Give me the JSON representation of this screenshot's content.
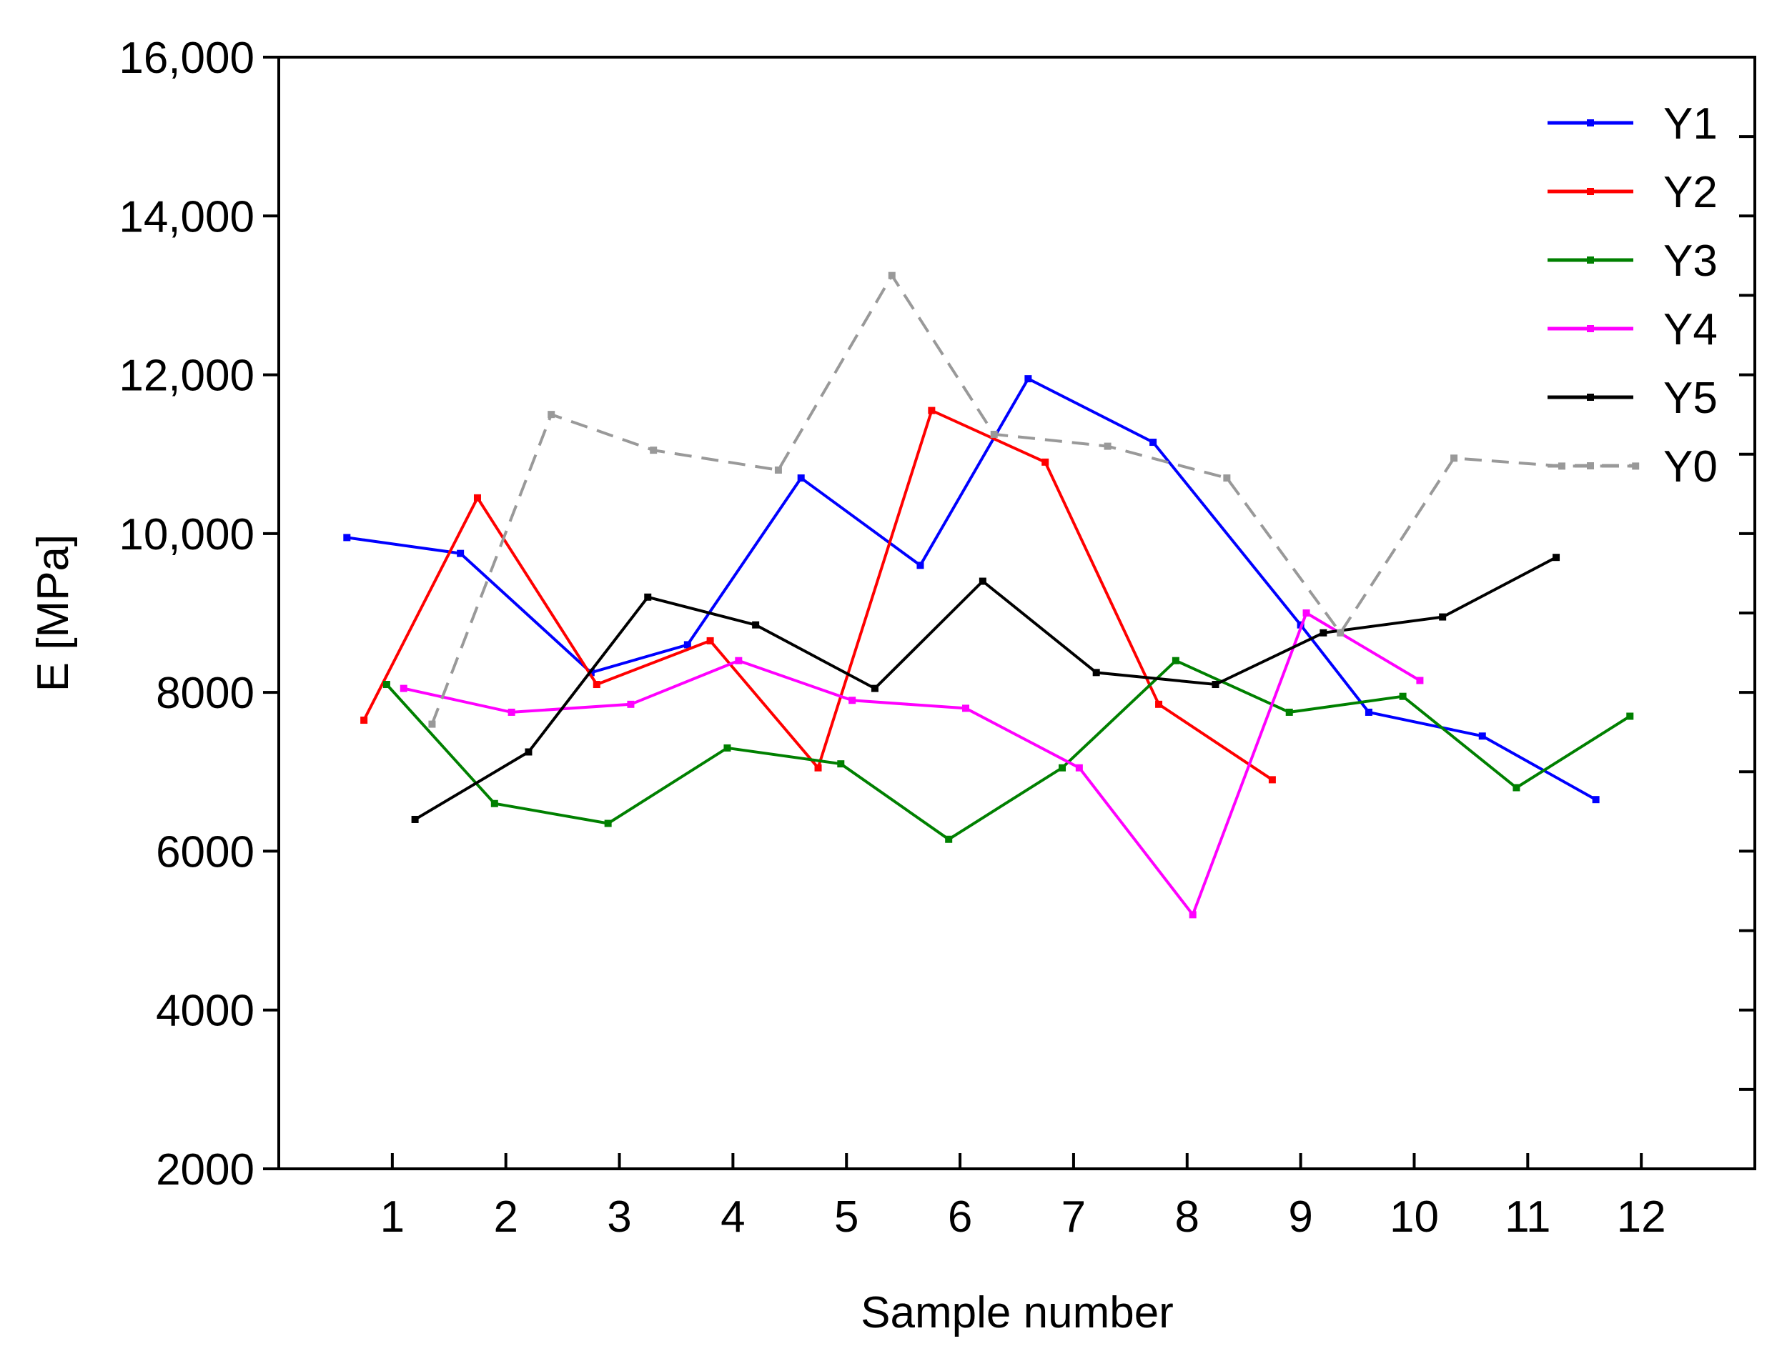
{
  "chart_data": {
    "type": "line",
    "title": "",
    "xlabel": "Sample number",
    "ylabel": "E [MPa]",
    "xlim": [
      0,
      13
    ],
    "ylim": [
      2000,
      16000
    ],
    "x_ticks": [
      1,
      2,
      3,
      4,
      5,
      6,
      7,
      8,
      9,
      10,
      11,
      12
    ],
    "x_tick_labels": [
      "1",
      "2",
      "3",
      "4",
      "5",
      "6",
      "7",
      "8",
      "9",
      "10",
      "11",
      "12"
    ],
    "y_ticks": [
      2000,
      4000,
      6000,
      8000,
      10000,
      12000,
      14000,
      16000
    ],
    "y_tick_labels": [
      "2000",
      "4000",
      "6000",
      "8000",
      "10,000",
      "12,000",
      "14,000",
      "16,000"
    ],
    "legend_position": "top-right",
    "series": [
      {
        "name": "Y1",
        "color": "#0000ff",
        "dash": "solid",
        "x": [
          0.6,
          1.6,
          2.75,
          3.6,
          4.6,
          5.65,
          6.6,
          7.7,
          9.0,
          9.6,
          10.6,
          11.6
        ],
        "y": [
          9950,
          9750,
          8250,
          8600,
          10700,
          9600,
          11950,
          11150,
          8850,
          7750,
          7450,
          6650
        ]
      },
      {
        "name": "Y2",
        "color": "#ff0000",
        "dash": "solid",
        "x": [
          0.75,
          1.75,
          2.8,
          3.8,
          4.75,
          5.75,
          6.75,
          7.75,
          8.75
        ],
        "y": [
          7650,
          10450,
          8100,
          8650,
          7050,
          11550,
          10900,
          7850,
          6900
        ]
      },
      {
        "name": "Y3",
        "color": "#008000",
        "dash": "solid",
        "x": [
          0.95,
          1.9,
          2.9,
          3.95,
          4.95,
          5.9,
          6.9,
          7.9,
          8.9,
          9.9,
          10.9,
          11.9
        ],
        "y": [
          8100,
          6600,
          6350,
          7300,
          7100,
          6150,
          7050,
          8400,
          7750,
          7950,
          6800,
          7700
        ]
      },
      {
        "name": "Y4",
        "color": "#ff00ff",
        "dash": "solid",
        "x": [
          1.1,
          2.05,
          3.1,
          4.05,
          5.05,
          6.05,
          7.05,
          8.05,
          9.05,
          10.05
        ],
        "y": [
          8050,
          7750,
          7850,
          8400,
          7900,
          7800,
          7050,
          5200,
          9000,
          8150
        ]
      },
      {
        "name": "Y5",
        "color": "#000000",
        "dash": "solid",
        "x": [
          1.2,
          2.2,
          3.25,
          4.2,
          5.25,
          6.2,
          7.2,
          8.25,
          9.2,
          10.25,
          11.25
        ],
        "y": [
          6400,
          7250,
          9200,
          8850,
          8050,
          9400,
          8250,
          8100,
          8750,
          8950,
          9700
        ]
      },
      {
        "name": "Y0",
        "color": "#999999",
        "dash": "dashed",
        "x": [
          1.35,
          2.4,
          3.3,
          4.4,
          5.4,
          6.3,
          7.3,
          8.35,
          9.35,
          10.35,
          11.3,
          11.95
        ],
        "y": [
          7600,
          11500,
          11050,
          10800,
          13250,
          11250,
          11100,
          10700,
          8750,
          10950,
          10850,
          10850
        ]
      }
    ]
  }
}
